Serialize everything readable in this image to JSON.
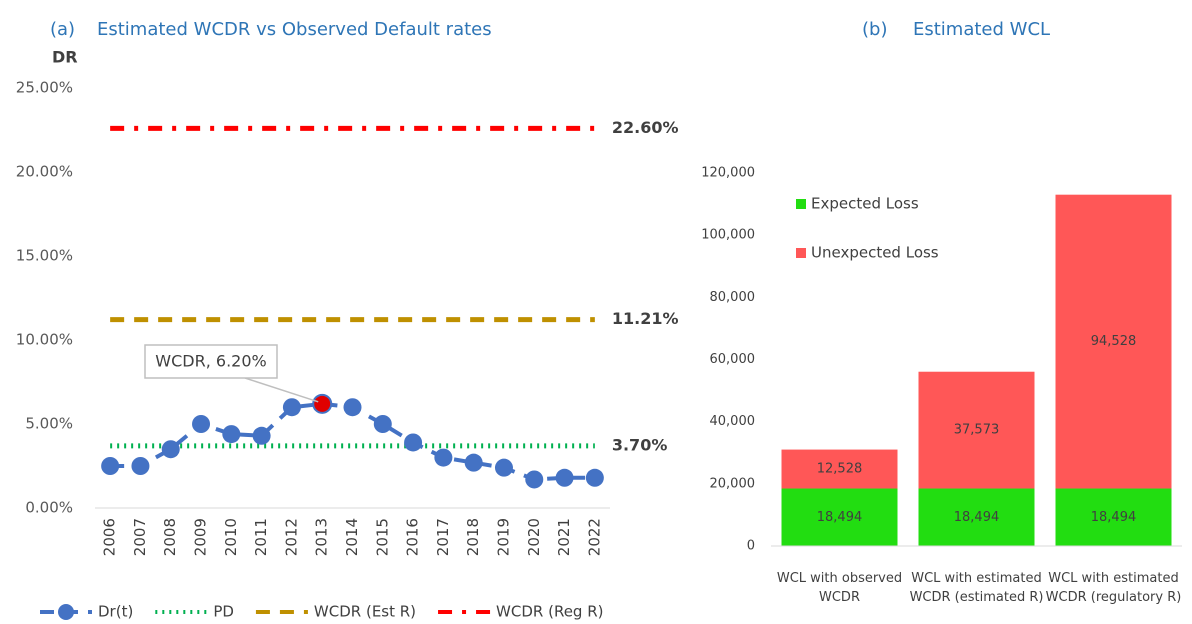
{
  "chart_data": [
    {
      "type": "line",
      "panel": "(a)",
      "title": "Estimated WCDR vs Observed Default rates",
      "y_label": "DR",
      "categories": [
        "2006",
        "2007",
        "2008",
        "2009",
        "2010",
        "2011",
        "2012",
        "2013",
        "2014",
        "2015",
        "2016",
        "2017",
        "2018",
        "2019",
        "2020",
        "2021",
        "2022"
      ],
      "series": [
        {
          "name": "Dr(t)",
          "color": "#4472c4",
          "dash": "dash",
          "marker": true,
          "highlight": "2013",
          "highlight_color": "#e00000",
          "values": [
            2.5,
            2.5,
            3.5,
            5.0,
            4.4,
            4.3,
            6.0,
            6.2,
            6.0,
            5.0,
            3.9,
            3.0,
            2.7,
            2.4,
            1.7,
            1.8,
            1.8
          ]
        },
        {
          "name": "PD",
          "color": "#00b050",
          "dash": "dot",
          "values": [
            3.7,
            3.7,
            3.7,
            3.7,
            3.7,
            3.7,
            3.7,
            3.7,
            3.7,
            3.7,
            3.7,
            3.7,
            3.7,
            3.7,
            3.7,
            3.7,
            3.7
          ],
          "value_labels": [
            null,
            null,
            null,
            null,
            null,
            null,
            null,
            null,
            null,
            null,
            null,
            null,
            null,
            null,
            null,
            null,
            "3.70%"
          ]
        },
        {
          "name": "WCDR (Est R)",
          "color": "#bf9000",
          "dash": "dash",
          "values": [
            11.21,
            11.21,
            11.21,
            11.21,
            11.21,
            11.21,
            11.21,
            11.21,
            11.21,
            11.21,
            11.21,
            11.21,
            11.21,
            11.21,
            11.21,
            11.21,
            11.21
          ],
          "value_labels": [
            null,
            null,
            null,
            null,
            null,
            null,
            null,
            null,
            null,
            null,
            null,
            null,
            null,
            null,
            null,
            null,
            "11.21%"
          ]
        },
        {
          "name": "WCDR (Reg R)",
          "color": "#ff0000",
          "dash": "dashdot",
          "values": [
            22.6,
            22.6,
            22.6,
            22.6,
            22.6,
            22.6,
            22.6,
            22.6,
            22.6,
            22.6,
            22.6,
            22.6,
            22.6,
            22.6,
            22.6,
            22.6,
            22.6
          ],
          "value_labels": [
            null,
            null,
            null,
            null,
            null,
            null,
            null,
            null,
            null,
            null,
            null,
            null,
            null,
            null,
            null,
            null,
            "22.60%"
          ]
        }
      ],
      "annotation": "WCDR, 6.20%",
      "ylim": [
        0,
        25
      ],
      "yticks": [
        {
          "value": 0,
          "label": "0.00%"
        },
        {
          "value": 5,
          "label": "5.00%"
        },
        {
          "value": 10,
          "label": "10.00%"
        },
        {
          "value": 15,
          "label": "15.00%"
        },
        {
          "value": 20,
          "label": "20.00%"
        },
        {
          "value": 25,
          "label": "25.00%"
        }
      ],
      "legend": "bottom"
    },
    {
      "type": "stacked_bar",
      "panel": "(b)",
      "title": "Estimated WCL",
      "categories": [
        "WCL with observed WCDR",
        "WCL with estimated WCDR (estimated R)",
        "WCL with estimated WCDR (regulatory R)"
      ],
      "series": [
        {
          "name": "Expected Loss",
          "color": "#22dd11",
          "values": [
            18494,
            18494,
            18494
          ],
          "value_labels": [
            "18,494",
            "18,494",
            "18,494"
          ]
        },
        {
          "name": "Unexpected Loss",
          "color": "#ff5757",
          "values": [
            12528,
            37573,
            94528
          ],
          "value_labels": [
            "12,528",
            "37,573",
            "94,528"
          ]
        }
      ],
      "ylim": [
        0,
        120000
      ],
      "yticks": [
        0,
        {
          "value": 20000,
          "label": "20,000"
        },
        {
          "value": 40000,
          "label": "40,000"
        },
        {
          "value": 60000,
          "label": "60,000"
        },
        {
          "value": 80000,
          "label": "80,000"
        },
        {
          "value": 100000,
          "label": "100,000"
        },
        {
          "value": 120000,
          "label": "120,000"
        }
      ],
      "legend": "upper left"
    }
  ]
}
